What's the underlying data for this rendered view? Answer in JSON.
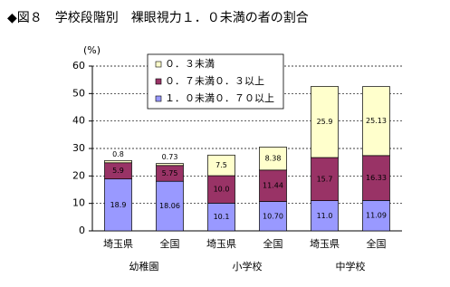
{
  "chart_data": {
    "type": "stacked_bar",
    "title": "◆図８　学校段階別　裸眼視力１．０未満の者の割合",
    "y_label": "(%)",
    "categories": [
      "埼玉県",
      "全国",
      "埼玉県",
      "全国",
      "埼玉県",
      "全国"
    ],
    "group_labels": [
      "幼稚園",
      "小学校",
      "中学校"
    ],
    "ylim": [
      0,
      60
    ],
    "yticks": [
      0,
      10,
      20,
      30,
      40,
      50,
      60
    ],
    "grid": true,
    "series": [
      {
        "name": "１．０未満０．７０以上",
        "color": "#9999ff",
        "values": [
          18.9,
          18.06,
          10.1,
          10.7,
          11.0,
          11.09
        ],
        "value_labels": [
          "18.9",
          "18.06",
          "10.1",
          "10.70",
          "11.0",
          "11.09"
        ]
      },
      {
        "name": "０．７未満０．３以上",
        "color": "#993366",
        "values": [
          5.9,
          5.75,
          10.0,
          11.44,
          15.7,
          16.33
        ],
        "value_labels": [
          "5.9",
          "5.75",
          "10.0",
          "11.44",
          "15.7",
          "16.33"
        ]
      },
      {
        "name": "０．３未満",
        "color": "#ffffcc",
        "values": [
          0.8,
          0.73,
          7.5,
          8.38,
          25.9,
          25.13
        ],
        "value_labels": [
          "0.8",
          "0.73",
          "7.5",
          "8.38",
          "25.9",
          "25.13"
        ]
      }
    ]
  }
}
